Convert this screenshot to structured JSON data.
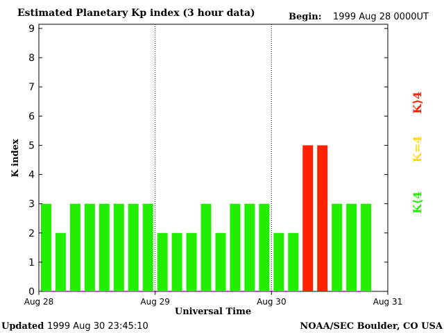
{
  "chart_data": {
    "type": "bar",
    "title": "Estimated Planetary Kp index (3 hour data)",
    "begin_label": "Begin:",
    "begin_value": "1999 Aug 28 0000UT",
    "xlabel": "Universal Time",
    "ylabel": "K index",
    "ylim": [
      0,
      9
    ],
    "yticks": [
      "0",
      "1",
      "2",
      "3",
      "4",
      "5",
      "6",
      "7",
      "8",
      "9"
    ],
    "xticks": [
      "Aug 28",
      "Aug 29",
      "Aug 30",
      "Aug 31"
    ],
    "day_separators": [
      "Aug 29",
      "Aug 30"
    ],
    "intervals_per_day": 8,
    "values": [
      3,
      2,
      3,
      3,
      3,
      3,
      3,
      3,
      2,
      2,
      2,
      3,
      2,
      3,
      3,
      3,
      2,
      2,
      5,
      5,
      3,
      3,
      3
    ],
    "legend": [
      {
        "label": "K<4",
        "display": "K⟨4",
        "color": "#22ee00"
      },
      {
        "label": "K=4",
        "display": "K=4",
        "color": "#ffdd00"
      },
      {
        "label": "K>4",
        "display": "K⟩4",
        "color": "#ff2200"
      }
    ]
  },
  "footer": {
    "updated_label": "Updated",
    "updated_value": "1999 Aug 30 23:45:10",
    "source": "NOAA/SEC Boulder, CO USA"
  },
  "colors": {
    "low": "#22ee00",
    "equal": "#ffdd00",
    "high": "#ff2200",
    "axis": "#000000"
  }
}
